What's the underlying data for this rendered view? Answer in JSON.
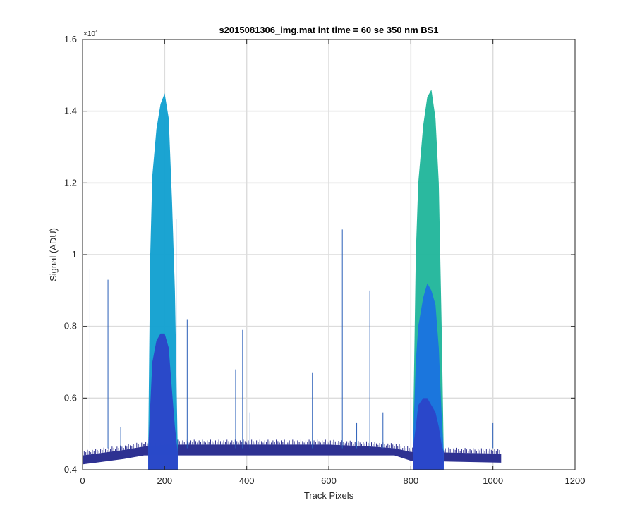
{
  "chart_data": {
    "type": "area",
    "title": "s2015081306_img.mat int time = 60 se  350 nm BS1",
    "xlabel": "Track Pixels",
    "ylabel": "Signal (ADU)",
    "y_exponent_label": "×10",
    "y_exponent_power": "4",
    "xlim": [
      0,
      1200
    ],
    "ylim": [
      0.4,
      1.6
    ],
    "x_ticks": [
      0,
      200,
      400,
      600,
      800,
      1000,
      1200
    ],
    "x_tick_labels": [
      "0",
      "200",
      "400",
      "600",
      "800",
      "1000",
      "1200"
    ],
    "y_ticks": [
      0.4,
      0.6,
      0.8,
      1.0,
      1.2,
      1.4,
      1.6
    ],
    "y_tick_labels": [
      "0.4",
      "0.6",
      "0.8",
      "1",
      "1.2",
      "1.4",
      "1.6"
    ],
    "grid": true,
    "colors": {
      "baseline": "#2e3192",
      "inner_peak": "#2b45c8",
      "mid_peak": "#1a72e0",
      "upper_peak_1": "#0f9fd0",
      "upper_peak_2": "#1fb59a",
      "spike": "#2a5fb8"
    },
    "baseline": {
      "x": [
        0,
        100,
        150,
        200,
        300,
        400,
        500,
        600,
        700,
        760,
        800,
        1020
      ],
      "lower": [
        0.415,
        0.43,
        0.44,
        0.44,
        0.44,
        0.44,
        0.44,
        0.44,
        0.44,
        0.44,
        0.425,
        0.42
      ],
      "upper": [
        0.44,
        0.455,
        0.465,
        0.47,
        0.47,
        0.47,
        0.47,
        0.47,
        0.465,
        0.46,
        0.45,
        0.445
      ]
    },
    "peaks": [
      {
        "x": [
          160,
          165,
          170,
          180,
          190,
          200,
          210,
          218,
          225,
          232
        ],
        "envelopes": [
          [
            0.46,
            0.58,
            0.7,
            0.76,
            0.78,
            0.78,
            0.74,
            0.62,
            0.52,
            0.45
          ],
          [
            0.46,
            1.0,
            1.22,
            1.35,
            1.42,
            1.45,
            1.38,
            1.15,
            0.9,
            0.45
          ]
        ]
      },
      {
        "x": [
          805,
          812,
          818,
          830,
          840,
          850,
          860,
          868,
          875,
          880
        ],
        "envelopes": [
          [
            0.46,
            0.52,
            0.58,
            0.6,
            0.6,
            0.58,
            0.56,
            0.52,
            0.47,
            0.45
          ],
          [
            0.46,
            0.7,
            0.8,
            0.88,
            0.92,
            0.9,
            0.86,
            0.74,
            0.55,
            0.45
          ],
          [
            0.46,
            1.0,
            1.2,
            1.36,
            1.44,
            1.46,
            1.38,
            1.2,
            0.8,
            0.45
          ]
        ]
      }
    ],
    "spikes": [
      {
        "x": 18,
        "y": 0.96
      },
      {
        "x": 62,
        "y": 0.93
      },
      {
        "x": 93,
        "y": 0.52
      },
      {
        "x": 228,
        "y": 1.1
      },
      {
        "x": 255,
        "y": 0.82
      },
      {
        "x": 373,
        "y": 0.68
      },
      {
        "x": 390,
        "y": 0.79
      },
      {
        "x": 408,
        "y": 0.56
      },
      {
        "x": 560,
        "y": 0.67
      },
      {
        "x": 633,
        "y": 1.07
      },
      {
        "x": 668,
        "y": 0.53
      },
      {
        "x": 700,
        "y": 0.9
      },
      {
        "x": 732,
        "y": 0.56
      },
      {
        "x": 1000,
        "y": 0.53
      }
    ]
  }
}
